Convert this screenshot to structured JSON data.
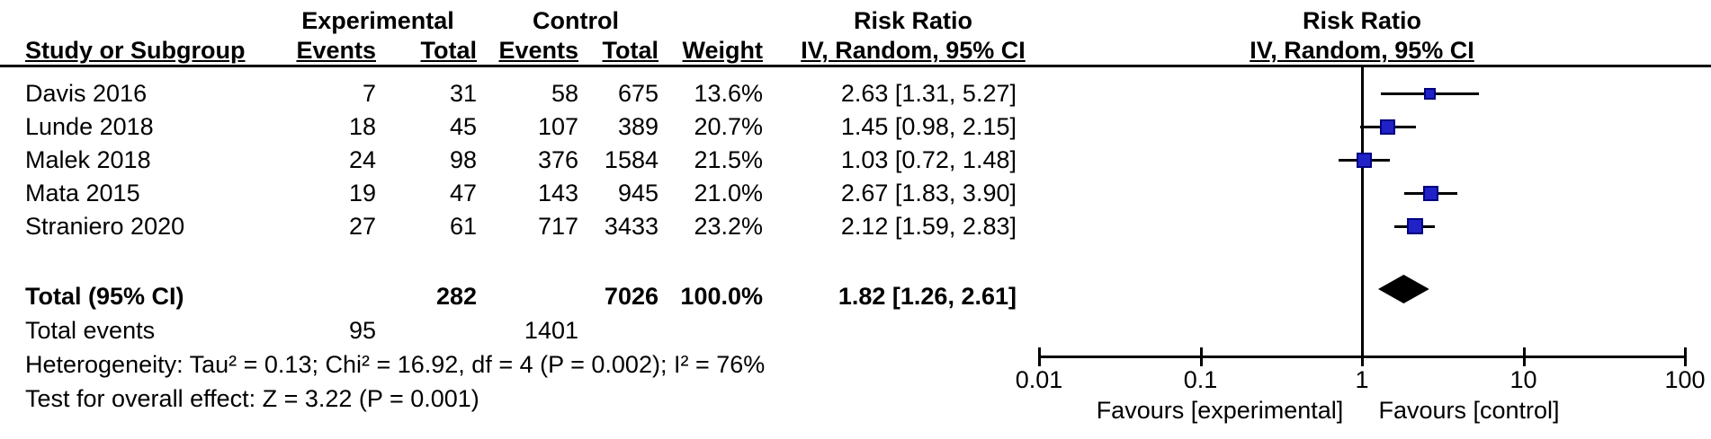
{
  "table": {
    "group_headers": {
      "experimental": "Experimental",
      "control": "Control",
      "risk_ratio_left": "Risk Ratio",
      "risk_ratio_right": "Risk Ratio"
    },
    "col_headers": {
      "study": "Study or Subgroup",
      "exp_events": "Events",
      "exp_total": "Total",
      "ctrl_events": "Events",
      "ctrl_total": "Total",
      "weight": "Weight",
      "ci_left": "IV, Random, 95% CI",
      "ci_right": "IV, Random, 95% CI"
    },
    "studies": [
      {
        "name": "Davis 2016",
        "e_events": "7",
        "e_total": "31",
        "c_events": "58",
        "c_total": "675",
        "weight": "13.6%",
        "ci": "2.63 [1.31, 5.27]"
      },
      {
        "name": "Lunde 2018",
        "e_events": "18",
        "e_total": "45",
        "c_events": "107",
        "c_total": "389",
        "weight": "20.7%",
        "ci": "1.45 [0.98, 2.15]"
      },
      {
        "name": "Malek 2018",
        "e_events": "24",
        "e_total": "98",
        "c_events": "376",
        "c_total": "1584",
        "weight": "21.5%",
        "ci": "1.03 [0.72, 1.48]"
      },
      {
        "name": "Mata 2015",
        "e_events": "19",
        "e_total": "47",
        "c_events": "143",
        "c_total": "945",
        "weight": "21.0%",
        "ci": "2.67 [1.83, 3.90]"
      },
      {
        "name": "Straniero 2020",
        "e_events": "27",
        "e_total": "61",
        "c_events": "717",
        "c_total": "3433",
        "weight": "23.2%",
        "ci": "2.12 [1.59, 2.83]"
      }
    ],
    "total_row": {
      "label": "Total (95% CI)",
      "e_total": "282",
      "c_total": "7026",
      "weight": "100.0%",
      "ci": "1.82 [1.26, 2.61]"
    },
    "total_events_row": {
      "label": "Total events",
      "e_events": "95",
      "c_events": "1401"
    },
    "heterogeneity": "Heterogeneity: Tau² = 0.13; Chi² = 16.92, df = 4 (P = 0.002); I² = 76%",
    "overall_effect": "Test for overall effect: Z = 3.22 (P = 0.001)"
  },
  "chart_data": {
    "type": "forest",
    "effect_measure": "Risk Ratio",
    "model": "IV, Random, 95% CI",
    "x_scale": "log10",
    "xlim": [
      0.01,
      100
    ],
    "axis_ticks": [
      "0.01",
      "0.1",
      "1",
      "10",
      "100"
    ],
    "null_line_value": 1,
    "favours_left": "Favours [experimental]",
    "favours_right": "Favours [control]",
    "studies": [
      {
        "name": "Davis 2016",
        "rr": 2.63,
        "lo": 1.31,
        "hi": 5.27,
        "weight_pct": 13.6
      },
      {
        "name": "Lunde 2018",
        "rr": 1.45,
        "lo": 0.98,
        "hi": 2.15,
        "weight_pct": 20.7
      },
      {
        "name": "Malek 2018",
        "rr": 1.03,
        "lo": 0.72,
        "hi": 1.48,
        "weight_pct": 21.5
      },
      {
        "name": "Mata 2015",
        "rr": 2.67,
        "lo": 1.83,
        "hi": 3.9,
        "weight_pct": 21.0
      },
      {
        "name": "Straniero 2020",
        "rr": 2.12,
        "lo": 1.59,
        "hi": 2.83,
        "weight_pct": 23.2
      }
    ],
    "total": {
      "rr": 1.82,
      "lo": 1.26,
      "hi": 2.61,
      "weight_pct": 100.0
    },
    "colors": {
      "square": "#2121c8",
      "square_border": "#000080",
      "diamond": "#000000",
      "line": "#000000"
    }
  }
}
